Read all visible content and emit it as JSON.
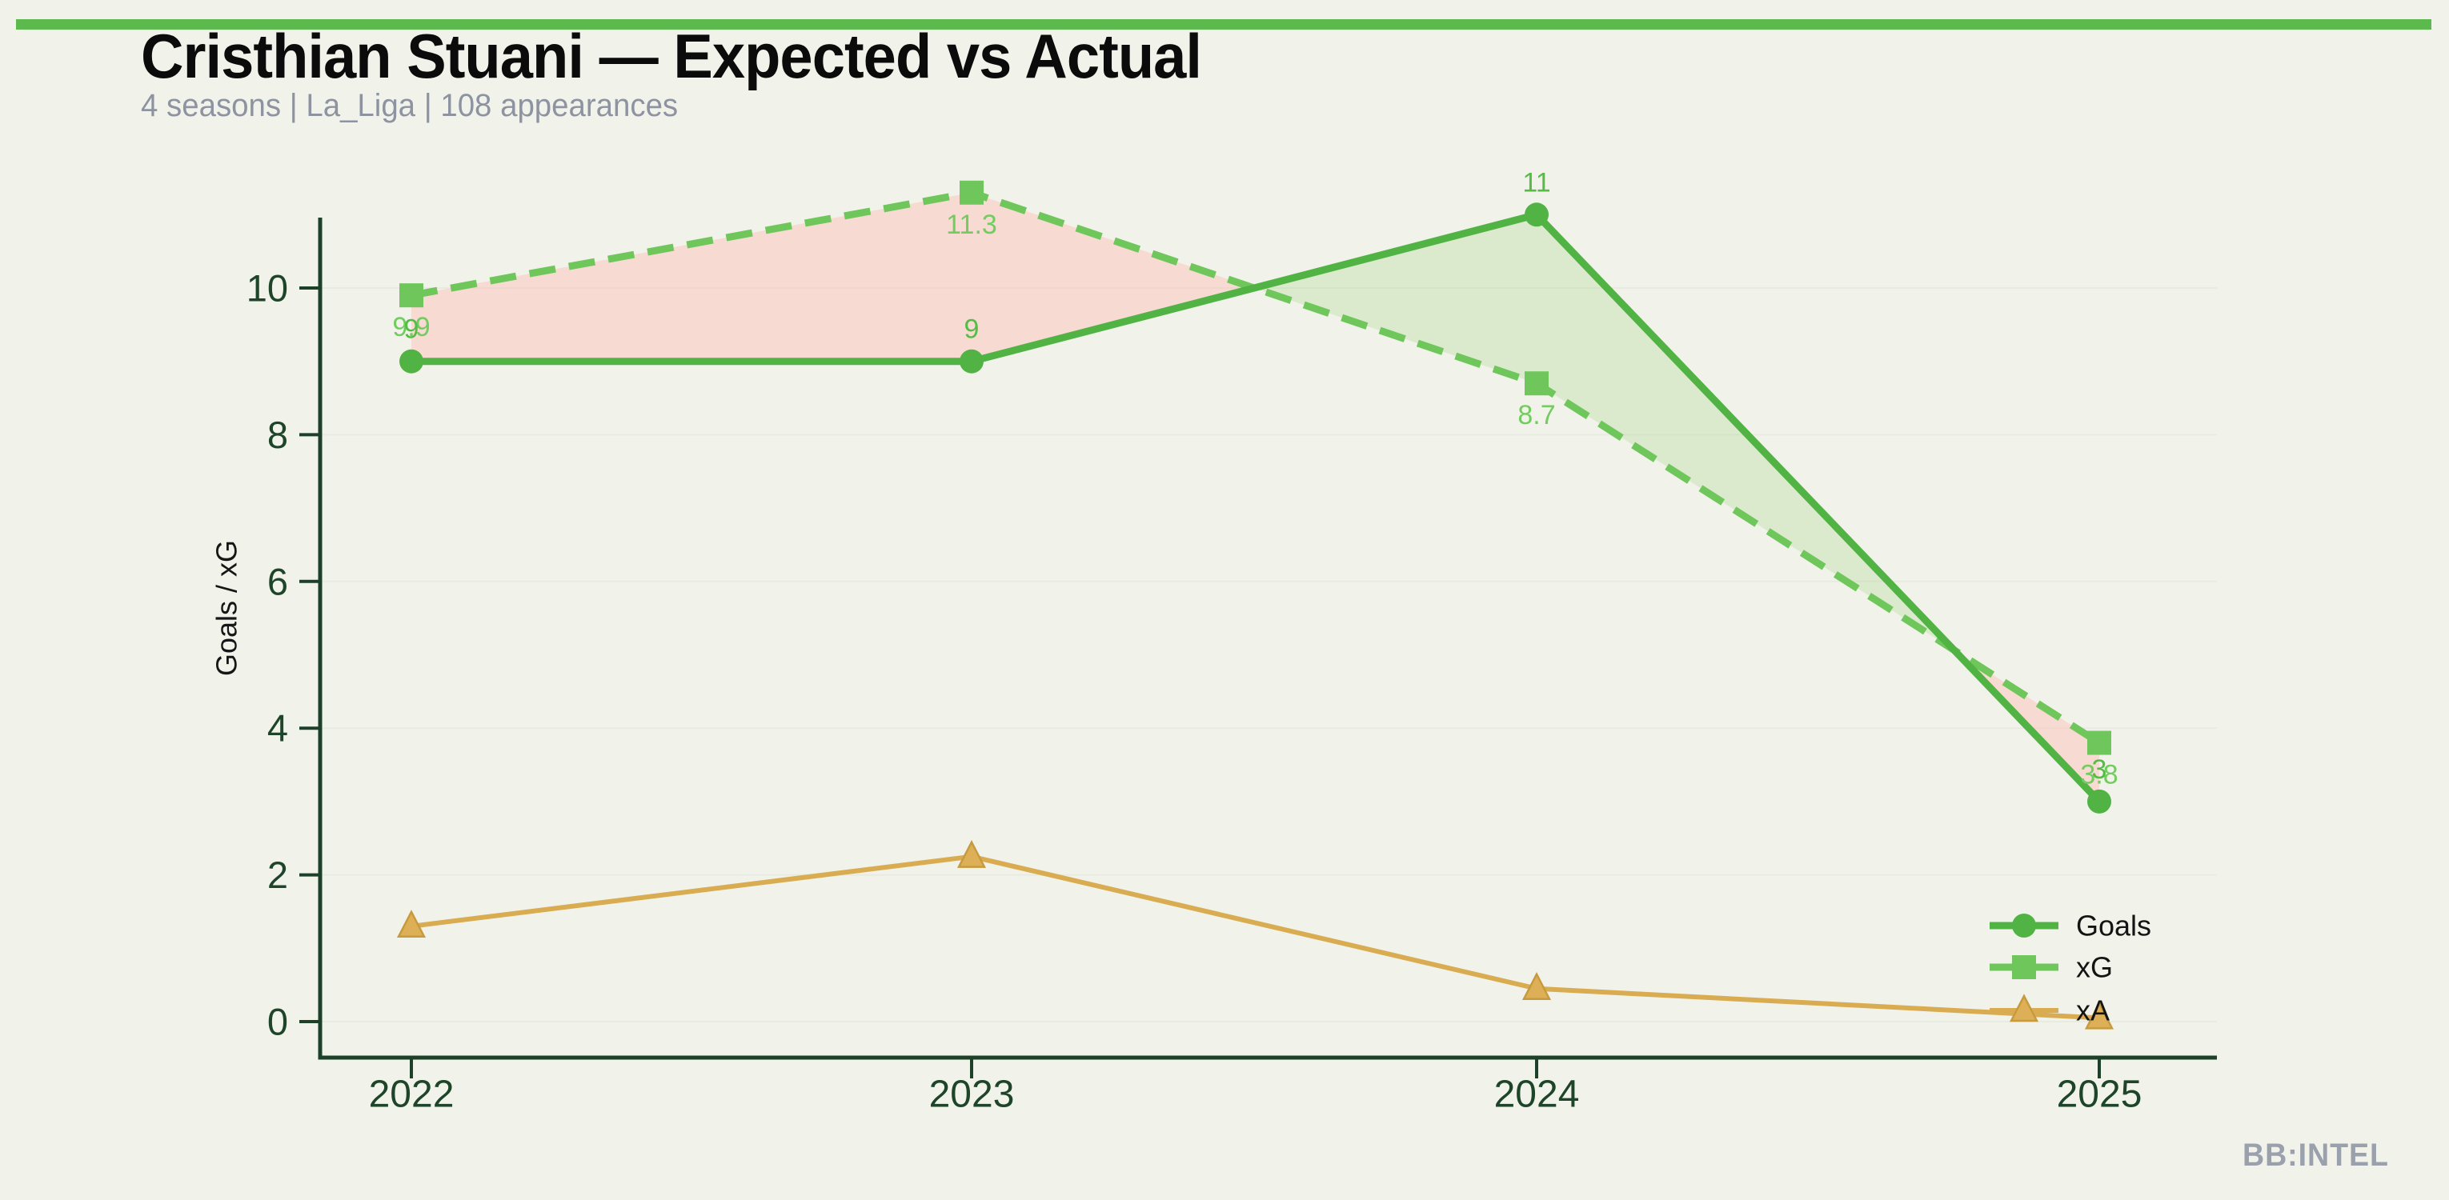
{
  "header": {
    "title": "Cristhian Stuani — Expected vs Actual",
    "subtitle": "4 seasons | La_Liga | 108 appearances"
  },
  "watermark": {
    "text": "BB:INTEL"
  },
  "chart_data": {
    "type": "line",
    "categories": [
      "2022",
      "2023",
      "2024",
      "2025"
    ],
    "series": [
      {
        "name": "Goals",
        "values": [
          9,
          9,
          11,
          3
        ],
        "labels": [
          "9",
          "9",
          "11",
          "3"
        ],
        "color": "#52b345",
        "label_color": "#55bc44",
        "marker": "circle",
        "style": "solid",
        "width": 9,
        "dash": null,
        "marker_size": 15,
        "label_dy": -40
      },
      {
        "name": "xG",
        "values": [
          9.9,
          11.3,
          8.7,
          3.8
        ],
        "labels": [
          "9.9",
          "11.3",
          "8.7",
          "3.8"
        ],
        "color": "#6fc75c",
        "label_color": "#72cc5f",
        "marker": "square",
        "style": "dashed",
        "width": 9,
        "dash": "33 17",
        "marker_size": 15,
        "label_dy": 40
      },
      {
        "name": "xA",
        "values": [
          1.3,
          2.25,
          0.45,
          0.05
        ],
        "labels": null,
        "color": "#d9ac52",
        "label_color": "#d9ac52",
        "marker": "triangle",
        "style": "solid",
        "width": 6,
        "dash": null,
        "marker_size": 16,
        "label_dy": 0
      }
    ],
    "ylabel": "Goals / xG",
    "xlabel": "",
    "yticks": [
      0,
      2,
      4,
      6,
      8,
      10
    ],
    "ylim": [
      0,
      11.9
    ],
    "grid": "horizontal-faint",
    "legend_position": "lower right",
    "legend_labels": [
      "Goals",
      "xG",
      "xA"
    ],
    "colors": {
      "background": "#f1f3ea",
      "topbar": "#5bb94e",
      "title": "#0b0b0b",
      "subtitle": "#8d93a0",
      "axis": "#1c4028",
      "tick_label": "#1e4429",
      "axis_label": "#161616",
      "grid": "#e8ebe1",
      "deficit_fill": "rgba(255,183,177,0.42)",
      "surplus_fill": "rgba(160,212,130,0.28)",
      "xa_marker_fill": "#ddb058",
      "xa_marker_edge": "#c89a3e",
      "legend_text": "#141414",
      "watermark": "#9aa1ad"
    }
  }
}
